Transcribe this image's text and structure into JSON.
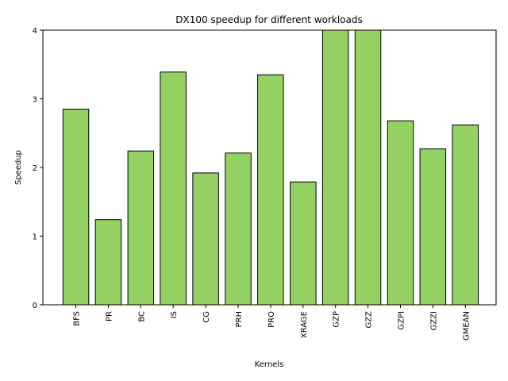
{
  "chart_data": {
    "type": "bar",
    "title": "DX100 speedup for different workloads",
    "xlabel": "Kernels",
    "ylabel": "Speedup",
    "ylim": [
      0,
      4
    ],
    "yticks": [
      0,
      1,
      2,
      3,
      4
    ],
    "grid": false,
    "categories": [
      "BFS",
      "PR",
      "BC",
      "IS",
      "CG",
      "PRH",
      "PRO",
      "XRAGE",
      "GZP",
      "GZZ",
      "GZPI",
      "GZZI",
      "GMEAN"
    ],
    "values": [
      2.85,
      1.24,
      2.24,
      3.39,
      1.92,
      2.21,
      3.35,
      1.79,
      4.0,
      4.0,
      2.68,
      2.27,
      2.62
    ],
    "bar_color": "#93d162",
    "edge_color": "#000000"
  }
}
